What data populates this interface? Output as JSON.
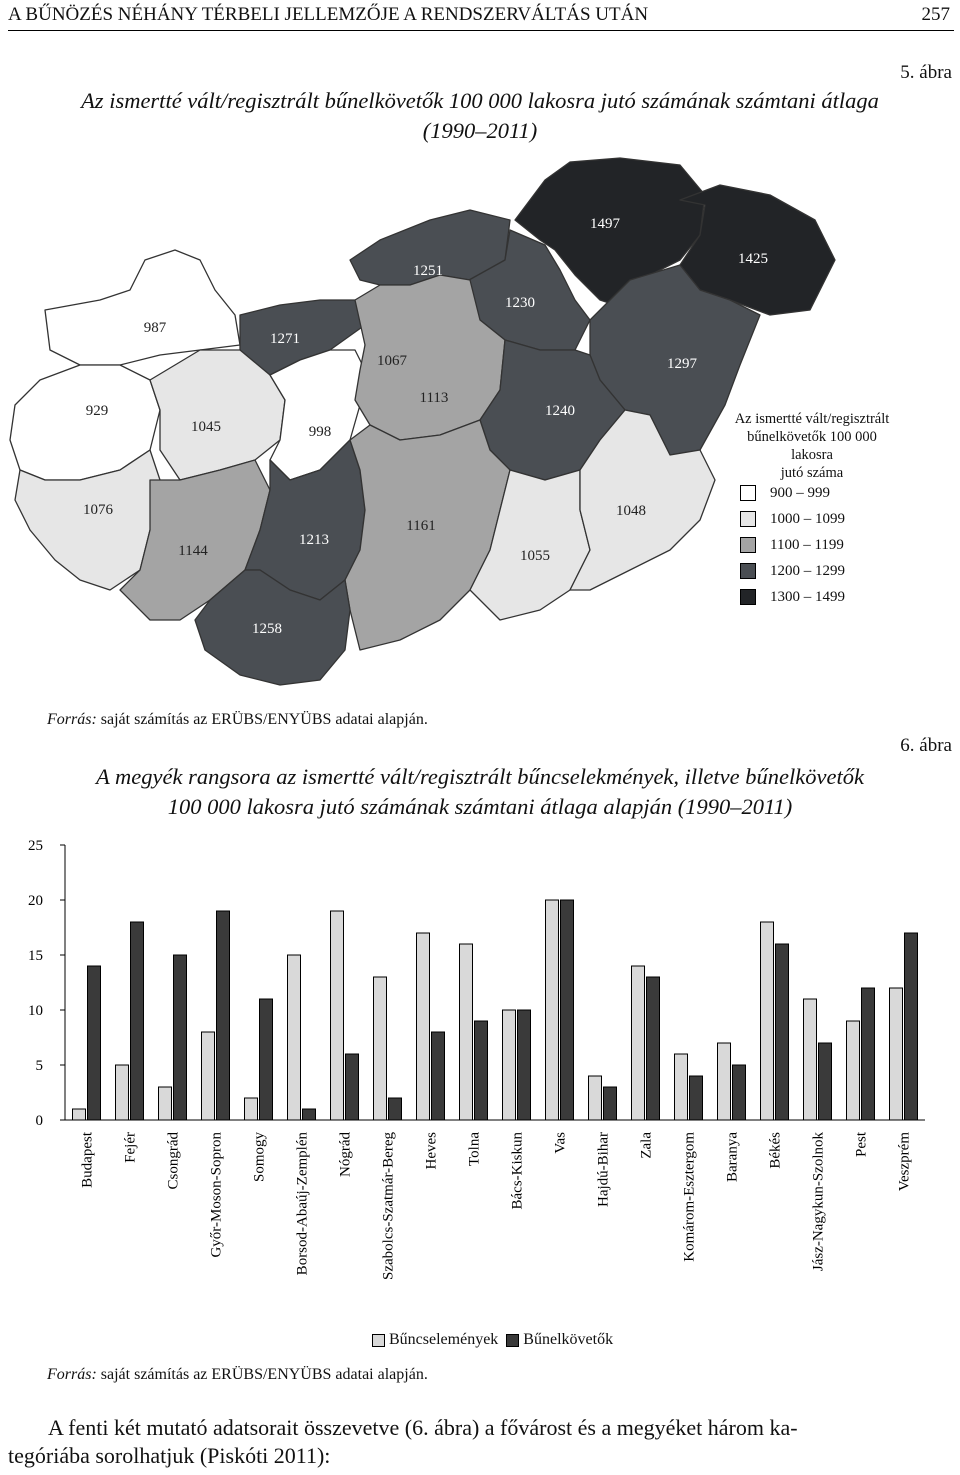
{
  "header": {
    "title": "A BŰNÖZÉS NÉHÁNY TÉRBELI JELLEMZŐJE A RENDSZERVÁLTÁS UTÁN",
    "page": "257"
  },
  "fig5": {
    "number": "5. ábra",
    "title_line1": "Az ismertté vált/regisztrált bűnelkövetők 100 000 lakosra jutó számának számtani átlaga",
    "title_line2": "(1990–2011)",
    "legend_title_1": "Az ismertté vált/regisztrált",
    "legend_title_2": "bűnelkövetők 100 000 lakosra",
    "legend_title_3": "jutó száma",
    "legend": [
      {
        "label": "900 – 999",
        "color": "#ffffff"
      },
      {
        "label": "1000 – 1099",
        "color": "#e6e6e6"
      },
      {
        "label": "1100 – 1199",
        "color": "#a4a4a4"
      },
      {
        "label": "1200 – 1299",
        "color": "#4a4e53"
      },
      {
        "label": "1300 – 1499",
        "color": "#222427"
      }
    ],
    "regions": [
      {
        "value": "1497",
        "color": "#222427"
      },
      {
        "value": "1425",
        "color": "#222427"
      },
      {
        "value": "1251",
        "color": "#4a4e53"
      },
      {
        "value": "1230",
        "color": "#4a4e53"
      },
      {
        "value": "987",
        "color": "#ffffff"
      },
      {
        "value": "1271",
        "color": "#4a4e53"
      },
      {
        "value": "1067",
        "color": "#e6e6e6"
      },
      {
        "value": "1297",
        "color": "#4a4e53"
      },
      {
        "value": "929",
        "color": "#ffffff"
      },
      {
        "value": "1045",
        "color": "#e6e6e6"
      },
      {
        "value": "998",
        "color": "#ffffff"
      },
      {
        "value": "1113",
        "color": "#a4a4a4"
      },
      {
        "value": "1240",
        "color": "#4a4e53"
      },
      {
        "value": "1076",
        "color": "#e6e6e6"
      },
      {
        "value": "1144",
        "color": "#a4a4a4"
      },
      {
        "value": "1213",
        "color": "#4a4e53"
      },
      {
        "value": "1161",
        "color": "#a4a4a4"
      },
      {
        "value": "1055",
        "color": "#e6e6e6"
      },
      {
        "value": "1048",
        "color": "#e6e6e6"
      },
      {
        "value": "1258",
        "color": "#4a4e53"
      }
    ],
    "source_prefix": "Forrás:",
    "source_text": "saját számítás az ERÜBS/ENYÜBS adatai alapján."
  },
  "fig6": {
    "number": "6. ábra",
    "title_line1": "A megyék rangsora az ismertté vált/regisztrált bűncselekmények, illetve bűnelkövetők",
    "title_line2": "100 000 lakosra jutó számának számtani átlaga alapján (1990–2011)",
    "source_prefix": "Forrás:",
    "source_text": "saját számítás az ERÜBS/ENYÜBS adatai alapján."
  },
  "chart_data": {
    "type": "bar",
    "categories": [
      "Budapest",
      "Fejér",
      "Csongrád",
      "Győr-Moson-Sopron",
      "Somogy",
      "Borsod-Abaúj-Zemplén",
      "Nógrád",
      "Szabolcs-Szatmár-Bereg",
      "Heves",
      "Tolna",
      "Bács-Kiskun",
      "Vas",
      "Hajdú-Bihar",
      "Zala",
      "Komárom-Esztergom",
      "Baranya",
      "Békés",
      "Jász-Nagykun-Szolnok",
      "Pest",
      "Veszprém"
    ],
    "series": [
      {
        "name": "Bűncselemények",
        "color": "#d9d9d9",
        "values": [
          1,
          5,
          3,
          8,
          2,
          15,
          19,
          13,
          17,
          16,
          10,
          20,
          4,
          14,
          6,
          7,
          18,
          11,
          9,
          12
        ]
      },
      {
        "name": "Bűnelkövetők",
        "color": "#3a3a3a",
        "values": [
          14,
          18,
          15,
          19,
          11,
          1,
          6,
          2,
          8,
          9,
          10,
          20,
          3,
          13,
          4,
          5,
          16,
          7,
          12,
          17
        ]
      }
    ],
    "yticks": [
      "0",
      "5",
      "10",
      "15",
      "20",
      "25"
    ],
    "ylim": [
      0,
      25
    ],
    "grid": false,
    "legend_position": "bottom"
  },
  "body_text": {
    "line1": "A fenti két mutató adatsorait összevetve (6. ábra) a fővárost és a megyéket három ka-",
    "line2": "tegóriába sorolhatjuk (Piskóti 2011):"
  }
}
